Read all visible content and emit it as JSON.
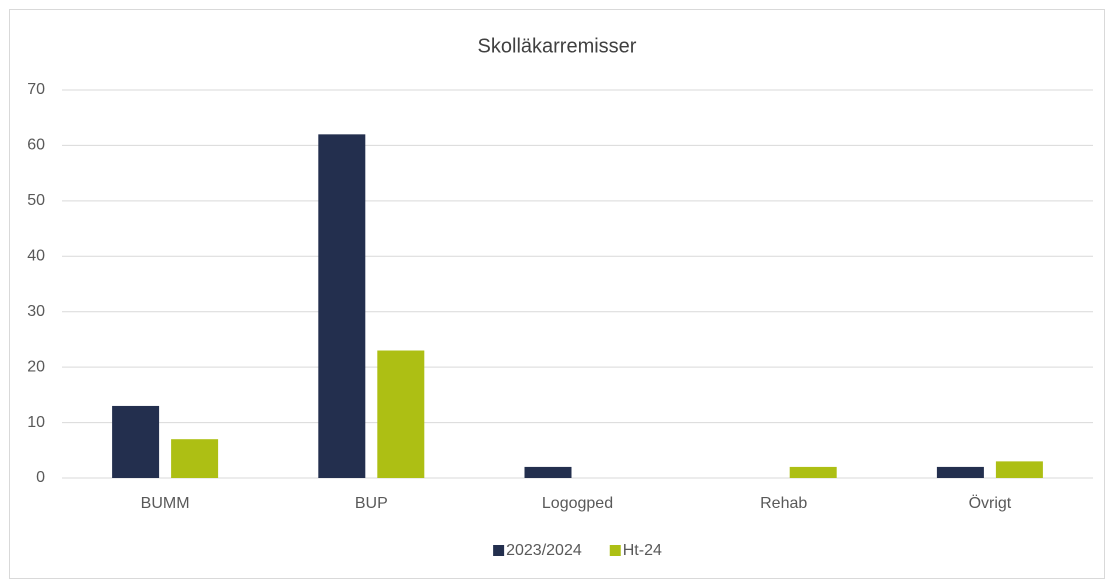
{
  "chart_data": {
    "type": "bar",
    "title": "Skolläkarremisser",
    "categories": [
      "BUMM",
      "BUP",
      "Logogped",
      "Rehab",
      "Övrigt"
    ],
    "series": [
      {
        "name": "2023/2024",
        "color": "#232f4e",
        "values": [
          13,
          62,
          2,
          0,
          2
        ]
      },
      {
        "name": "Ht-24",
        "color": "#adbf14",
        "values": [
          7,
          23,
          0,
          2,
          3
        ]
      }
    ],
    "ylim": [
      0,
      70
    ],
    "yticks": [
      0,
      10,
      20,
      30,
      40,
      50,
      60,
      70
    ],
    "grid": true,
    "legend": "bottom"
  }
}
